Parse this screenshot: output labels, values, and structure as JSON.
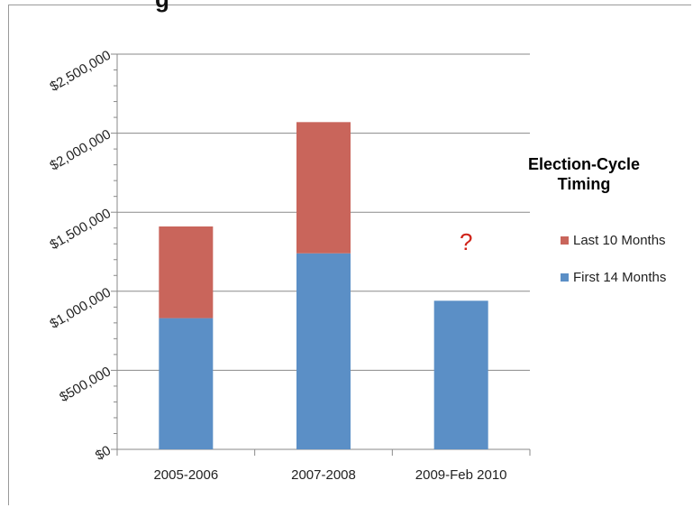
{
  "title_visible": "g",
  "legend": {
    "title": "Election-Cycle Timing",
    "items": [
      {
        "label": "Last 10 Months",
        "color": "#c9655b"
      },
      {
        "label": "First 14 Months",
        "color": "#5b8fc6"
      }
    ]
  },
  "annotation": "?",
  "chart_data": {
    "type": "bar",
    "stacked": true,
    "categories": [
      "2005-2006",
      "2007-2008",
      "2009-Feb 2010"
    ],
    "series": [
      {
        "name": "First 14 Months",
        "color": "#5b8fc6",
        "values": [
          830000,
          1240000,
          940000
        ]
      },
      {
        "name": "Last 10 Months",
        "color": "#c9655b",
        "values": [
          580000,
          830000,
          null
        ]
      }
    ],
    "ylim": [
      0,
      2500000
    ],
    "yticks": [
      "$0",
      "$500,000",
      "$1,000,000",
      "$1,500,000",
      "$2,000,000",
      "$2,500,000"
    ],
    "ytick_values": [
      0,
      500000,
      1000000,
      1500000,
      2000000,
      2500000
    ],
    "grid": true,
    "legend_position": "right"
  }
}
